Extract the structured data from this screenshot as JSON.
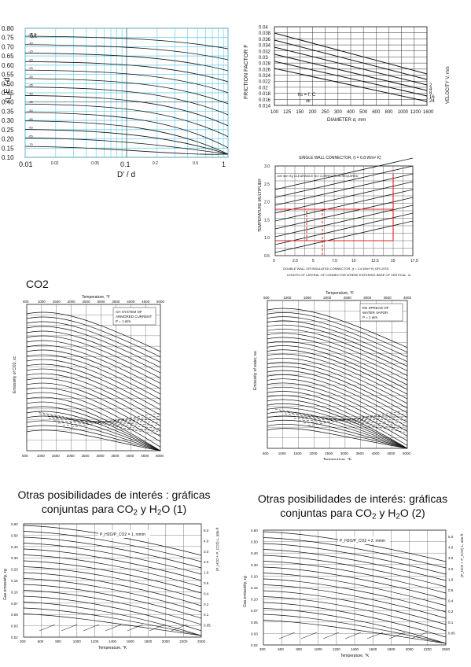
{
  "colors": {
    "grid_blue": "#5fc8e6",
    "ink": "#111111",
    "red_guide": "#e02020",
    "paper": "#ffffff"
  },
  "panel1": {
    "y_ticks": [
      "0.80",
      "0.75",
      "0.70",
      "0.65",
      "0.60",
      "0.55",
      "0.50",
      "0.45",
      "0.40",
      "0.35",
      "0.30",
      "0.25",
      "0.20",
      "0.15",
      "0.10"
    ],
    "x_ticks": [
      "0.01",
      "0.02",
      "0.05",
      "0.1",
      "0.2",
      "0.5",
      "1"
    ],
    "x_tick_small": [
      "0.02",
      "0.05",
      "0.2",
      "0.5"
    ],
    "x_tick_big": [
      "0.01",
      "0.1",
      "1"
    ],
    "ylabel": "η_E / d",
    "xlabel": "D' / d",
    "corner_label": "δ/t"
  },
  "panel2": {
    "y_ticks": [
      "0.04",
      "0.038",
      "0.036",
      "0.034",
      "0.032",
      "0.03",
      "0.028",
      "0.026",
      "0.024",
      "0.022",
      "0.02",
      "0.018",
      "0.016",
      "0.014"
    ],
    "x_ticks": [
      "100",
      "125",
      "150",
      "200",
      "250",
      "300",
      "400",
      "500",
      "600",
      "800",
      "1000",
      "1200",
      "1600"
    ],
    "ylabel": "FRICTION FACTOR F",
    "xlabel": "DIAMETER d, mm",
    "right_label": "VELOCITY V, m/s",
    "right_ticks": [
      "2",
      "4",
      "8",
      "16",
      "24"
    ]
  },
  "panel3": {
    "top_title": "SINGLE WALL CONNECTOR, (t = 6.8 W/m² K)",
    "note": "100 mm Hg CLEARANCE NO CORRECTION REQUIRED",
    "x_ticks": [
      "0",
      "2.5",
      "5",
      "7.5",
      "10",
      "12.5",
      "15",
      "17.5"
    ],
    "y_ticks": [
      "3.0",
      "2.5",
      "2.0",
      "1.5",
      "1.0",
      "0.5"
    ],
    "ylabel": "TEMPERATURE MULTIPLIER",
    "xlabel": "DOUBLE WALL OR INSULATED CONNECTOR, (t = 3.4 W/m² K) OR LESS",
    "xlabel2": "LENGTH OF LATERAL OF CONNECTOR WHERE ENTERING BASE OF VERTICAL, m"
  },
  "co2": {
    "label": "CO2",
    "top_axis_title": "Temperature, °F",
    "top_ticks": [
      "500",
      "1000",
      "1500",
      "2000",
      "2500",
      "3000",
      "3500",
      "4000",
      "4500",
      "5000"
    ],
    "bottom_ticks": [
      "500",
      "1000",
      "1500",
      "2000",
      "2500",
      "3000",
      "3500",
      "4000",
      "4500",
      "5000"
    ],
    "xlabel": "Temperature, °R",
    "ylabel": "Emissivity of CO2, εc",
    "legend": [
      "CH SYSTEM OF",
      "ARMORED CURRENT",
      "P = 1 atm"
    ]
  },
  "h2o": {
    "top_axis_title": "Temperature, °F",
    "top_ticks": [
      "500",
      "1000",
      "1500",
      "2000",
      "2500",
      "3000",
      "3500",
      "4000"
    ],
    "bottom_ticks": [
      "500",
      "1000",
      "1500",
      "2000",
      "2500",
      "3000",
      "3500",
      "4000",
      "4500",
      "5000"
    ],
    "xlabel": "Temperature, °F",
    "ylabel": "Emissivity of water, εw",
    "legend": [
      "EN SPREAD OF",
      "WATER VAPOR",
      "P = 1 atm"
    ]
  },
  "bottom_left": {
    "title_main": "Otras posibilidades de interés : gráficas",
    "title_pre": "conjuntas para CO",
    "title_mid": " y H",
    "title_post": "O (1)",
    "sub2": "2",
    "sub_b": "2",
    "curve_label": "P_H2O/P_CO2 = 1, mmm",
    "ylabel": "Gas emissivity, εg",
    "xlabel": "Temperature, °K",
    "x_ticks": [
      "300",
      "600",
      "800",
      "1000",
      "1200",
      "1400",
      "1600",
      "1800",
      "2000",
      "2200",
      "2500"
    ],
    "y_ticks": [
      "0.60",
      "0.50",
      "0.40",
      "0.30",
      "0.20",
      "0.15",
      "0.10",
      "0.07",
      "0.05",
      "0.03",
      "0.02"
    ],
    "right_ticks": [
      "5.0",
      "4.0",
      "3.0",
      "2.0",
      "1.0",
      "0.6",
      "0.4",
      "0.2",
      "0.1",
      "0.05"
    ],
    "right_title": "(P_H2O + P_CO2) L, atm·ft"
  },
  "bottom_right": {
    "title_main": "Otras posibilidades de interés: gráficas",
    "title_pre": "conjuntas para CO",
    "title_mid": " y H",
    "title_post": "O (2)",
    "sub2": "2",
    "sub_b": "2",
    "curve_label": "P_H2O/P_CO2 = 2, mmm",
    "ylabel": "Gas emissivity, εg",
    "xlabel": "Temperature, °K",
    "x_ticks": [
      "300",
      "600",
      "800",
      "1000",
      "1200",
      "1400",
      "1600",
      "1800",
      "2000",
      "2200",
      "2500"
    ],
    "y_ticks": [
      "0.60",
      "0.50",
      "0.40",
      "0.30",
      "0.20",
      "0.15",
      "0.10",
      "0.07",
      "0.05",
      "0.03",
      "0.02"
    ],
    "right_ticks": [
      "5.0",
      "4.0",
      "3.0",
      "2.0",
      "1.0",
      "0.6",
      "0.4",
      "0.2",
      "0.1",
      "0.05"
    ],
    "right_title": "(P_H2O + P_CO2) L, atm·ft"
  }
}
